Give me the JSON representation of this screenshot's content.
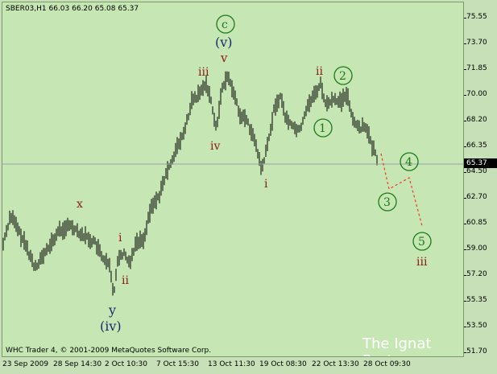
{
  "symbol_info": "SBER03,H1  66.03 66.20 65.08 65.37",
  "copyright": "WHC Trader 4, © 2001-2009 MetaQuotes Software Corp.",
  "watermark": "The Ignat Post",
  "current_price": "65.37",
  "colors": {
    "background": "#c6e6b4",
    "candle": "#000000",
    "dark_red": "#8b1a1a",
    "navy": "#1a2a6e",
    "green": "#1a7a1a",
    "projection": "#ff3030"
  },
  "y_axis_labels": [
    "75.55",
    "73.70",
    "71.85",
    "70.00",
    "68.20",
    "66.35",
    "64.50",
    "62.70",
    "60.85",
    "59.00",
    "57.20",
    "55.35",
    "53.50",
    "51.70"
  ],
  "x_axis_labels": [
    "23 Sep 2009",
    "28 Sep 14:30",
    "2 Oct 10:30",
    "7 Oct 15:30",
    "13 Oct 11:30",
    "19 Oct 08:30",
    "22 Oct 13:30",
    "28 Oct 09:30"
  ],
  "wave_labels": {
    "x": "x",
    "y": "y",
    "iv_paren": "(iv)",
    "i_a": "i",
    "ii_a": "ii",
    "iii_a": "iii",
    "iv_a": "iv",
    "v_a": "v",
    "v_paren": "(v)",
    "c_circle": "c",
    "i_b": "i",
    "ii_b": "ii",
    "one": "1",
    "two": "2",
    "three": "3",
    "four": "4",
    "five": "5",
    "iii_b": "iii"
  }
}
